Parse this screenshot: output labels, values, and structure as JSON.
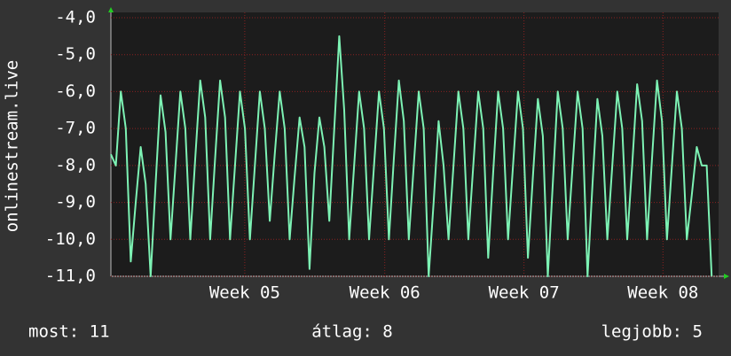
{
  "chart_data": {
    "type": "line",
    "y_label": "onlinestream.live",
    "x": [
      0,
      0.25,
      0.5,
      0.75,
      1,
      1.25,
      1.5,
      1.75,
      2,
      2.25,
      2.5,
      2.75,
      3,
      3.25,
      3.5,
      3.75,
      4,
      4.25,
      4.5,
      4.75,
      5,
      5.25,
      5.5,
      5.75,
      6,
      6.25,
      6.5,
      6.75,
      7,
      7.25,
      7.5,
      7.75,
      8,
      8.25,
      8.5,
      8.75,
      9,
      9.25,
      9.5,
      9.75,
      10,
      10.25,
      10.5,
      10.75,
      11,
      11.25,
      11.5,
      11.75,
      12,
      12.25,
      12.5,
      12.75,
      13,
      13.25,
      13.5,
      13.75,
      14,
      14.25,
      14.5,
      14.75,
      15,
      15.25,
      15.5,
      15.75,
      16,
      16.25,
      16.5,
      16.75,
      17,
      17.25,
      17.5,
      17.75,
      18,
      18.25,
      18.5,
      18.75,
      19,
      19.25,
      19.5,
      19.75,
      20,
      20.25,
      20.5,
      20.75,
      21,
      21.25,
      21.5,
      21.75,
      22,
      22.25,
      22.5,
      22.75,
      23,
      23.25,
      23.5,
      23.75,
      24,
      24.25,
      24.5,
      24.75,
      25,
      25.25,
      25.5,
      25.75,
      26,
      26.25,
      26.5,
      26.75,
      27,
      27.25,
      27.5,
      27.75,
      28,
      28.25,
      28.5,
      28.75,
      29,
      29.25,
      29.5,
      29.75,
      30,
      30.25
    ],
    "series": [
      {
        "color": "#7df2b4",
        "values": [
          -7.7,
          -8.0,
          -6.0,
          -7.0,
          -10.6,
          -9.0,
          -7.5,
          -8.5,
          -11.0,
          -8.5,
          -6.1,
          -7.1,
          -10.0,
          -8.0,
          -6.0,
          -7.0,
          -10.0,
          -7.8,
          -5.7,
          -6.7,
          -10.0,
          -7.8,
          -5.7,
          -6.7,
          -10.0,
          -8.0,
          -6.0,
          -7.0,
          -10.0,
          -8.0,
          -6.0,
          -7.0,
          -9.5,
          -7.7,
          -6.0,
          -7.0,
          -10.0,
          -8.3,
          -6.7,
          -7.5,
          -10.8,
          -8.2,
          -6.7,
          -7.5,
          -9.5,
          -7.0,
          -4.5,
          -6.5,
          -10.0,
          -8.0,
          -6.0,
          -7.0,
          -10.0,
          -8.0,
          -6.0,
          -7.0,
          -10.0,
          -7.8,
          -5.7,
          -6.8,
          -10.0,
          -8.0,
          -6.0,
          -7.0,
          -11.0,
          -9.0,
          -6.8,
          -8.0,
          -10.0,
          -8.0,
          -6.0,
          -7.0,
          -10.0,
          -8.0,
          -6.0,
          -7.0,
          -10.5,
          -8.2,
          -6.0,
          -7.0,
          -10.0,
          -8.0,
          -6.0,
          -7.0,
          -10.5,
          -8.3,
          -6.2,
          -7.2,
          -11.0,
          -8.5,
          -6.0,
          -7.0,
          -10.0,
          -8.0,
          -6.0,
          -7.0,
          -11.0,
          -8.5,
          -6.2,
          -7.2,
          -10.0,
          -8.0,
          -6.0,
          -7.0,
          -10.0,
          -8.0,
          -5.8,
          -6.8,
          -10.0,
          -7.8,
          -5.7,
          -6.8,
          -10.0,
          -8.0,
          -6.0,
          -7.0,
          -10.0,
          -8.8,
          -7.5,
          -8.0,
          -8.0,
          -11.0
        ]
      }
    ],
    "xlim": [
      0,
      30.6
    ],
    "xticks": [
      {
        "value": 6.74,
        "label": "Week 05"
      },
      {
        "value": 13.79,
        "label": "Week 06"
      },
      {
        "value": 20.8,
        "label": "Week 07"
      },
      {
        "value": 27.8,
        "label": "Week 08"
      }
    ],
    "ylim": [
      -11,
      -4
    ],
    "yticks": [
      {
        "value": -11,
        "label": "-11,0"
      },
      {
        "value": -10,
        "label": "-10,0"
      },
      {
        "value": -9,
        "label": "-9,0"
      },
      {
        "value": -8,
        "label": "-8,0"
      },
      {
        "value": -7,
        "label": "-7,0"
      },
      {
        "value": -6,
        "label": "-6,0"
      },
      {
        "value": -5,
        "label": "-5,0"
      },
      {
        "value": -4,
        "label": "-4,0"
      }
    ],
    "grid": true,
    "footer": {
      "current": "most: 11",
      "average": "átlag: 8",
      "best": "legjobb: 5"
    }
  }
}
